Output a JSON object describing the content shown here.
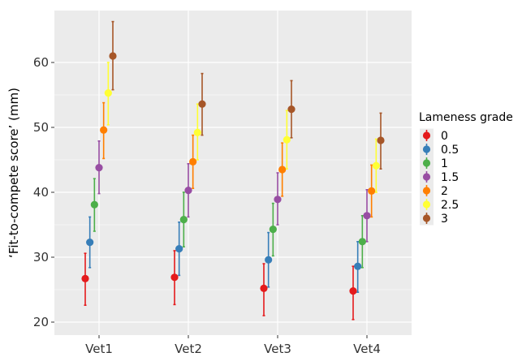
{
  "chart_data": {
    "type": "scatter",
    "ylabel": "‘Fit-to-compete score’ (mm)",
    "xlabel": "",
    "categories": [
      "Vet1",
      "Vet2",
      "Vet3",
      "Vet4"
    ],
    "ylim": [
      18,
      68
    ],
    "yticks": [
      20,
      30,
      40,
      50,
      60
    ],
    "grid": true,
    "legend": {
      "title": "Lameness grade",
      "position": "right"
    },
    "series": [
      {
        "name": "0",
        "color": "#E41A1C",
        "values": [
          26.7,
          26.9,
          25.2,
          24.8
        ],
        "lower": [
          22.6,
          22.7,
          21.0,
          20.4
        ],
        "upper": [
          30.6,
          31.0,
          29.0,
          28.6
        ]
      },
      {
        "name": "0.5",
        "color": "#377EB8",
        "values": [
          32.3,
          31.3,
          29.6,
          28.6
        ],
        "lower": [
          28.4,
          27.2,
          25.4,
          24.6
        ],
        "upper": [
          36.2,
          35.4,
          33.8,
          32.4
        ]
      },
      {
        "name": "1",
        "color": "#4DAF4A",
        "values": [
          38.1,
          35.8,
          34.3,
          32.4
        ],
        "lower": [
          34.0,
          31.6,
          30.2,
          28.4
        ],
        "upper": [
          42.1,
          40.0,
          38.3,
          36.4
        ]
      },
      {
        "name": "1.5",
        "color": "#984EA3",
        "values": [
          43.8,
          40.3,
          38.9,
          36.4
        ],
        "lower": [
          39.8,
          36.2,
          35.0,
          32.4
        ],
        "upper": [
          47.9,
          44.4,
          43.0,
          40.4
        ]
      },
      {
        "name": "2",
        "color": "#FF7F00",
        "values": [
          49.6,
          44.7,
          43.5,
          40.2
        ],
        "lower": [
          45.2,
          40.6,
          39.4,
          36.2
        ],
        "upper": [
          53.8,
          48.8,
          47.6,
          44.2
        ]
      },
      {
        "name": "2.5",
        "color": "#FFFF33",
        "values": [
          55.3,
          49.2,
          48.1,
          44.1
        ],
        "lower": [
          50.4,
          45.0,
          43.6,
          40.0
        ],
        "upper": [
          60.0,
          53.6,
          52.6,
          48.2
        ]
      },
      {
        "name": "3",
        "color": "#A65628",
        "values": [
          61.0,
          53.6,
          52.8,
          48.0
        ],
        "lower": [
          55.8,
          48.8,
          48.4,
          43.6
        ],
        "upper": [
          66.3,
          58.3,
          57.2,
          52.2
        ]
      }
    ]
  }
}
